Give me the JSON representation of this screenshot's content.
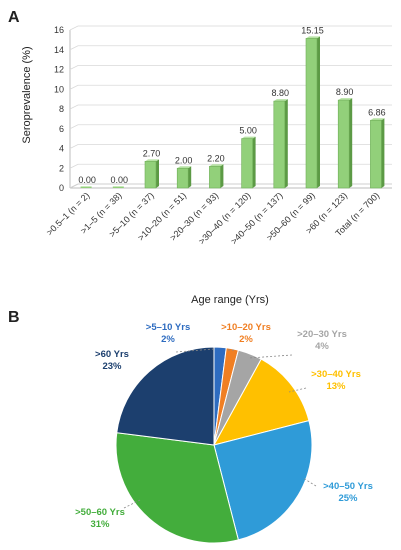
{
  "panel_a_label": "A",
  "panel_b_label": "B",
  "chart_data": [
    {
      "type": "bar",
      "title": "",
      "xlabel": "Age range (Yrs)",
      "ylabel": "Seroprevalence (%)",
      "ylim": [
        0,
        16
      ],
      "yticks": [
        0,
        2,
        4,
        6,
        8,
        10,
        12,
        14,
        16
      ],
      "grid": true,
      "categories": [
        ">0.5–1 (n = 2)",
        ">1–5 (n = 38)",
        ">5–10 (n = 37)",
        ">10–20 (n = 51)",
        ">20–30 (n = 93)",
        ">30–40 (n = 120)",
        ">40–50 (n = 137)",
        ">50–60 (n = 99)",
        ">60 (n = 123)",
        "Total (n = 700)"
      ],
      "values": [
        0.0,
        0.0,
        2.7,
        2.0,
        2.2,
        5.0,
        8.8,
        15.15,
        8.9,
        6.86
      ],
      "value_labels": [
        "0.00",
        "0.00",
        "2.70",
        "2.00",
        "2.20",
        "5.00",
        "8.80",
        "15.15",
        "8.90",
        "6.86"
      ],
      "bar_color": "#92d07a"
    },
    {
      "type": "pie",
      "title": "",
      "slices": [
        {
          "label": ">5–10 Yrs",
          "pct_label": "2%",
          "value": 2,
          "color": "#2e6cc0"
        },
        {
          "label": ">10–20 Yrs",
          "pct_label": "2%",
          "value": 2,
          "color": "#f07f23"
        },
        {
          "label": ">20–30 Yrs",
          "pct_label": "4%",
          "value": 4,
          "color": "#a5a5a5"
        },
        {
          "label": ">30–40 Yrs",
          "pct_label": "13%",
          "value": 13,
          "color": "#ffc000"
        },
        {
          "label": ">40–50 Yrs",
          "pct_label": "25%",
          "value": 25,
          "color": "#2f9bd8"
        },
        {
          "label": ">50–60 Yrs",
          "pct_label": "31%",
          "value": 31,
          "color": "#43ad3c"
        },
        {
          "label": ">60 Yrs",
          "pct_label": "23%",
          "value": 23,
          "color": "#1c3f6e"
        }
      ]
    }
  ]
}
